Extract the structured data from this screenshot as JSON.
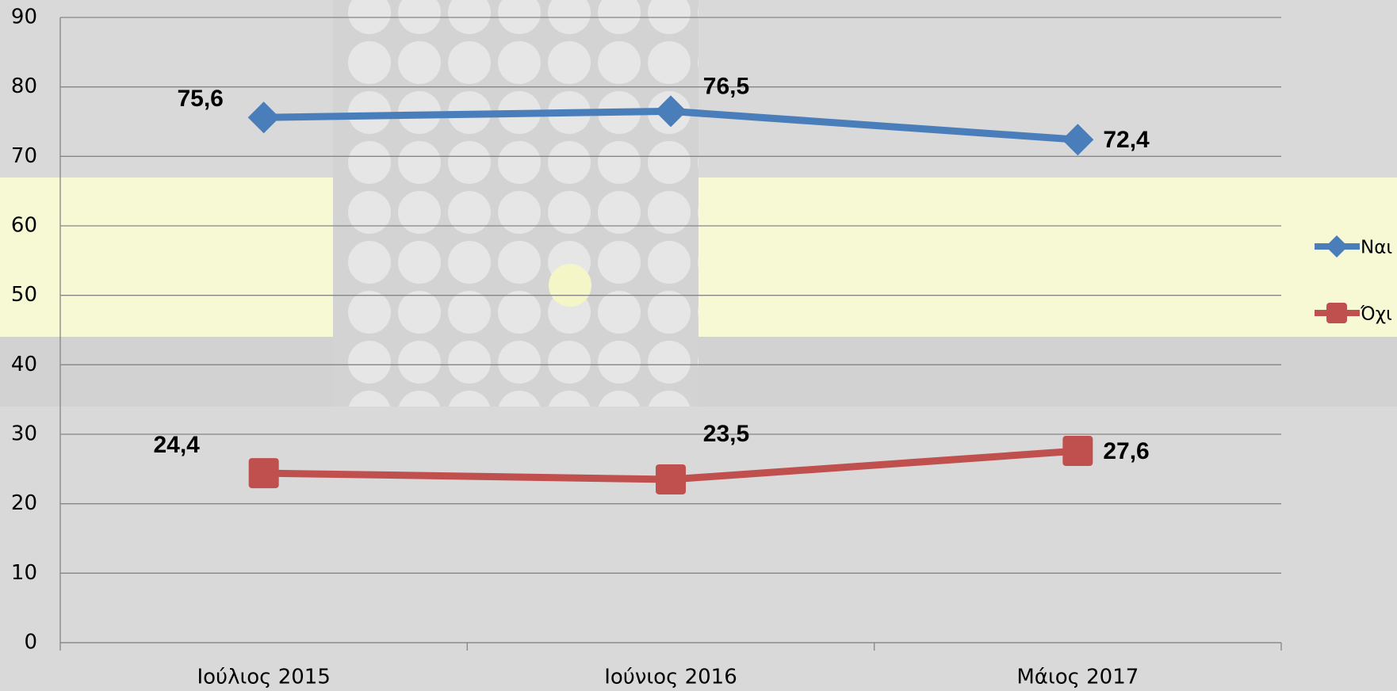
{
  "chart_data": {
    "type": "line",
    "categories": [
      "Ιούλιος 2015",
      "Ιούνιος 2016",
      "Μάιος 2017"
    ],
    "series": [
      {
        "name": "Ναι",
        "color": "#4a7ebb",
        "marker": "diamond",
        "values": [
          75.6,
          76.5,
          72.4
        ],
        "value_labels": [
          "75,6",
          "76,5",
          "72,4"
        ]
      },
      {
        "name": "Όχι",
        "color": "#c0504d",
        "marker": "square",
        "values": [
          24.4,
          23.5,
          27.6
        ],
        "value_labels": [
          "24,4",
          "23,5",
          "27,6"
        ]
      }
    ],
    "ylim": [
      0,
      90
    ],
    "yticks": [
      0,
      10,
      20,
      30,
      40,
      50,
      60,
      70,
      80,
      90
    ],
    "grid": true,
    "legend": "right"
  }
}
